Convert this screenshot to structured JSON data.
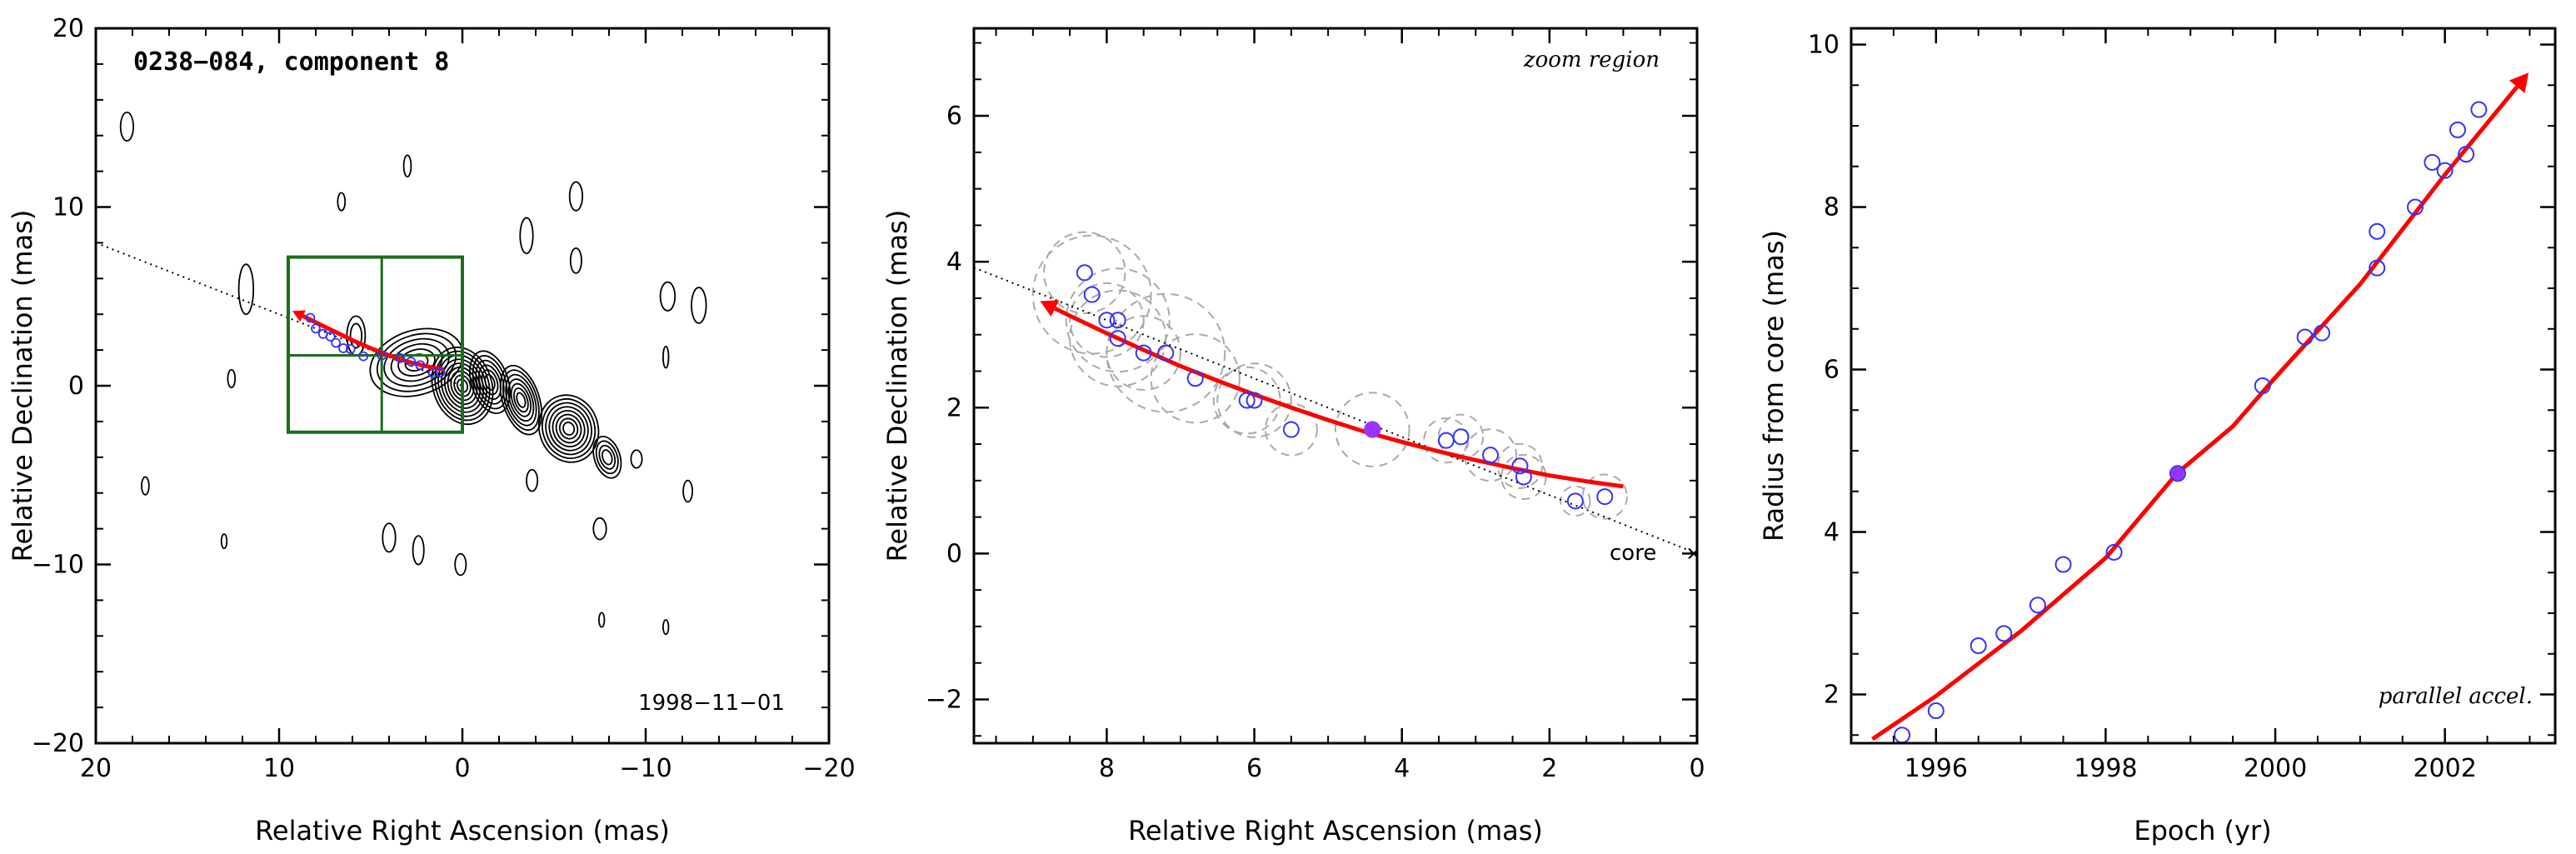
{
  "colors": {
    "fit": "#ff0000",
    "points": "#3333ff",
    "highlight": "#9933ff",
    "zoom_box": "#1b6e1b",
    "error_circles": "#aaaaaa",
    "contours": "#000000"
  },
  "chart_data": [
    {
      "type": "contour",
      "panel": "left",
      "title": "0238−084, component 8",
      "annotation": "1998−11−01",
      "xlabel": "Relative Right Ascension (mas)",
      "ylabel": "Relative Declination (mas)",
      "xlim": [
        20,
        -20
      ],
      "ylim": [
        -20,
        20
      ],
      "xticks": [
        20,
        10,
        0,
        -10,
        -20
      ],
      "yticks": [
        -20,
        -10,
        0,
        10,
        20
      ],
      "xtick_labels": [
        "20",
        "10",
        "0",
        "−10",
        "−20"
      ],
      "ytick_labels": [
        "−20",
        "−10",
        "0",
        "10",
        "20"
      ],
      "zoom_box": {
        "x": [
          9.5,
          0
        ],
        "y": [
          -2.6,
          7.2
        ],
        "x_mid": 4.4,
        "y_mid": 1.7
      },
      "jet_axis": {
        "x": [
          20,
          0
        ],
        "y": [
          8.0,
          0
        ]
      },
      "fit_track": {
        "x": [
          1.0,
          2.0,
          3.0,
          4.0,
          5.0,
          6.0,
          7.0,
          8.0,
          8.7
        ],
        "y": [
          0.9,
          1.1,
          1.35,
          1.7,
          2.1,
          2.55,
          3.05,
          3.55,
          3.9
        ]
      },
      "contour_blobs": [
        {
          "x": 0,
          "y": 0,
          "rx": 1.6,
          "ry": 2.2,
          "levels": 9
        },
        {
          "x": -1.5,
          "y": 0.2,
          "rx": 1.0,
          "ry": 1.8,
          "levels": 6
        },
        {
          "x": 2.5,
          "y": 1.3,
          "rx": 2.6,
          "ry": 1.8,
          "levels": 6
        },
        {
          "x": -3.2,
          "y": -0.8,
          "rx": 1.0,
          "ry": 2.0,
          "levels": 7
        },
        {
          "x": -5.8,
          "y": -2.4,
          "rx": 1.6,
          "ry": 1.9,
          "levels": 8
        },
        {
          "x": -7.9,
          "y": -4.0,
          "rx": 0.7,
          "ry": 1.2,
          "levels": 4
        },
        {
          "x": 5.8,
          "y": 2.8,
          "rx": 0.5,
          "ry": 1.1,
          "levels": 2
        },
        {
          "x": 11.8,
          "y": 5.4,
          "rx": 0.4,
          "ry": 1.4,
          "levels": 1
        },
        {
          "x": 18.3,
          "y": 14.5,
          "rx": 0.35,
          "ry": 0.8,
          "levels": 1
        },
        {
          "x": 3.0,
          "y": 12.3,
          "rx": 0.2,
          "ry": 0.6,
          "levels": 1
        },
        {
          "x": -3.5,
          "y": 8.4,
          "rx": 0.35,
          "ry": 1.0,
          "levels": 1
        },
        {
          "x": -6.2,
          "y": 10.6,
          "rx": 0.35,
          "ry": 0.8,
          "levels": 1
        },
        {
          "x": -6.2,
          "y": 7.0,
          "rx": 0.3,
          "ry": 0.7,
          "levels": 1
        },
        {
          "x": -11.2,
          "y": 5.0,
          "rx": 0.4,
          "ry": 0.8,
          "levels": 1
        },
        {
          "x": -12.9,
          "y": 4.5,
          "rx": 0.4,
          "ry": 1.0,
          "levels": 1
        },
        {
          "x": -11.1,
          "y": 1.6,
          "rx": 0.15,
          "ry": 0.6,
          "levels": 1
        },
        {
          "x": 12.6,
          "y": 0.4,
          "rx": 0.2,
          "ry": 0.5,
          "levels": 1
        },
        {
          "x": 17.3,
          "y": -5.6,
          "rx": 0.2,
          "ry": 0.5,
          "levels": 1
        },
        {
          "x": 13.0,
          "y": -8.7,
          "rx": 0.15,
          "ry": 0.4,
          "levels": 1
        },
        {
          "x": 4.0,
          "y": -8.5,
          "rx": 0.35,
          "ry": 0.8,
          "levels": 1
        },
        {
          "x": 2.4,
          "y": -9.2,
          "rx": 0.3,
          "ry": 0.8,
          "levels": 1
        },
        {
          "x": 0.1,
          "y": -10.0,
          "rx": 0.3,
          "ry": 0.6,
          "levels": 1
        },
        {
          "x": -3.8,
          "y": -5.3,
          "rx": 0.3,
          "ry": 0.6,
          "levels": 1
        },
        {
          "x": -7.5,
          "y": -8.0,
          "rx": 0.35,
          "ry": 0.6,
          "levels": 1
        },
        {
          "x": -9.5,
          "y": -4.1,
          "rx": 0.3,
          "ry": 0.5,
          "levels": 1
        },
        {
          "x": -12.3,
          "y": -5.9,
          "rx": 0.25,
          "ry": 0.6,
          "levels": 1
        },
        {
          "x": -7.6,
          "y": -13.1,
          "rx": 0.15,
          "ry": 0.4,
          "levels": 1
        },
        {
          "x": -11.1,
          "y": -13.5,
          "rx": 0.15,
          "ry": 0.4,
          "levels": 1
        },
        {
          "x": 6.6,
          "y": 10.3,
          "rx": 0.2,
          "ry": 0.5,
          "levels": 1
        }
      ],
      "points": {
        "x": [
          8.3,
          8.0,
          7.6,
          7.2,
          6.9,
          6.5,
          6.1,
          5.4,
          4.4,
          3.4,
          2.8,
          2.3,
          1.6,
          1.2
        ],
        "y": [
          3.8,
          3.2,
          2.9,
          2.75,
          2.4,
          2.1,
          2.05,
          1.65,
          1.7,
          1.55,
          1.35,
          1.15,
          0.7,
          0.75
        ]
      }
    },
    {
      "type": "scatter",
      "panel": "middle",
      "annotation": "zoom region",
      "core_label": "core",
      "xlabel": "Relative Right Ascension (mas)",
      "ylabel": "Relative Declination (mas)",
      "xlim": [
        9.8,
        0
      ],
      "ylim": [
        -2.6,
        7.2
      ],
      "xticks": [
        8,
        6,
        4,
        2,
        0
      ],
      "yticks": [
        -2,
        0,
        2,
        4,
        6
      ],
      "xtick_labels": [
        "8",
        "6",
        "4",
        "2",
        "0"
      ],
      "ytick_labels": [
        "−2",
        "0",
        "2",
        "4",
        "6"
      ],
      "jet_axis": {
        "x": [
          9.8,
          0
        ],
        "y": [
          3.92,
          0
        ]
      },
      "fit_track": {
        "x": [
          1.0,
          1.5,
          2.0,
          2.5,
          3.0,
          3.5,
          4.0,
          4.5,
          5.0,
          5.5,
          6.0,
          6.5,
          7.0,
          7.5,
          8.0,
          8.5,
          8.7
        ],
        "y": [
          0.92,
          0.99,
          1.07,
          1.17,
          1.28,
          1.4,
          1.53,
          1.67,
          1.83,
          2.0,
          2.18,
          2.37,
          2.57,
          2.79,
          3.02,
          3.26,
          3.36
        ]
      },
      "points": {
        "x": [
          8.3,
          8.2,
          8.0,
          7.85,
          7.85,
          7.5,
          7.2,
          6.8,
          6.1,
          6.0,
          5.5,
          4.4,
          3.4,
          3.2,
          2.8,
          2.4,
          2.35,
          1.65,
          1.25
        ],
        "y": [
          3.85,
          3.55,
          3.2,
          3.2,
          2.95,
          2.75,
          2.75,
          2.4,
          2.1,
          2.1,
          1.7,
          1.7,
          1.55,
          1.6,
          1.35,
          1.2,
          1.05,
          0.72,
          0.78
        ],
        "error_radius": [
          0.55,
          0.8,
          0.5,
          0.7,
          0.65,
          0.5,
          0.8,
          0.6,
          0.45,
          0.5,
          0.35,
          0.5,
          0.3,
          0.3,
          0.35,
          0.3,
          0.3,
          0.2,
          0.3
        ]
      },
      "highlight_point": {
        "x": 4.4,
        "y": 1.7
      }
    },
    {
      "type": "scatter",
      "panel": "right",
      "annotation": "parallel accel.",
      "xlabel": "Epoch (yr)",
      "ylabel": "Radius from core (mas)",
      "xlim": [
        1995.0,
        2003.3
      ],
      "ylim": [
        1.4,
        10.2
      ],
      "xticks": [
        1996,
        1998,
        2000,
        2002
      ],
      "yticks": [
        2,
        4,
        6,
        8,
        10
      ],
      "xtick_labels": [
        "1996",
        "1998",
        "2000",
        "2002"
      ],
      "ytick_labels": [
        "2",
        "4",
        "6",
        "8",
        "10"
      ],
      "fit_track": {
        "x": [
          1995.25,
          1996.0,
          1997.0,
          1998.0,
          1998.84,
          1999.5,
          2000.0,
          2001.0,
          2002.0,
          2002.85
        ],
        "y": [
          1.45,
          1.98,
          2.78,
          3.68,
          4.72,
          5.3,
          5.9,
          7.05,
          8.4,
          9.48
        ]
      },
      "points": {
        "x": [
          1995.6,
          1996.0,
          1996.5,
          1996.8,
          1997.2,
          1997.5,
          1998.1,
          1998.85,
          1999.85,
          2000.35,
          2000.55,
          2001.2,
          2001.2,
          2001.65,
          2001.85,
          2002.0,
          2002.15,
          2002.25,
          2002.4
        ],
        "y": [
          1.5,
          1.8,
          2.6,
          2.75,
          3.1,
          3.6,
          3.75,
          4.72,
          5.8,
          6.4,
          6.45,
          7.7,
          7.25,
          8.0,
          8.55,
          8.45,
          8.95,
          8.65,
          9.2
        ]
      },
      "highlight_point": {
        "x": 1998.85,
        "y": 4.72
      }
    }
  ]
}
